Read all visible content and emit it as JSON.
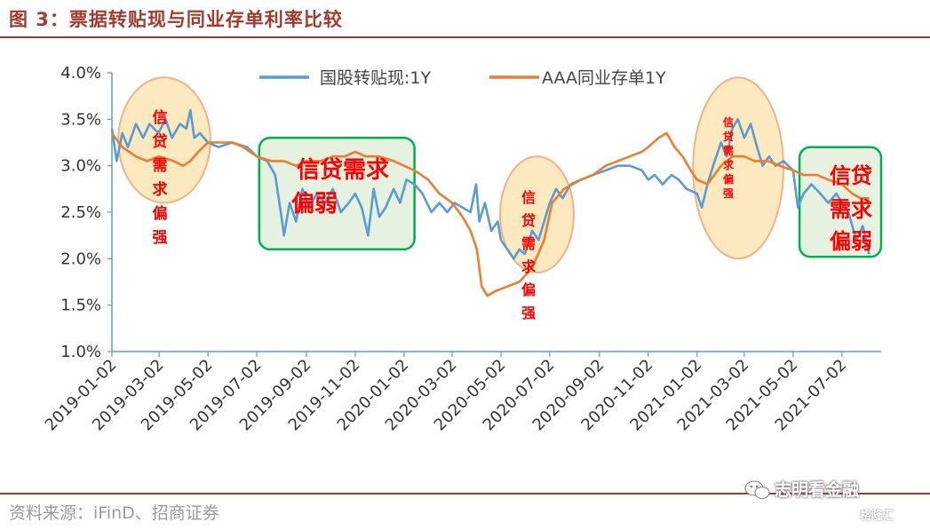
{
  "figure_title": "图 3：票据转贴现与同业存单利率比较",
  "source": "资料来源：iFinD、招商证券",
  "watermark": {
    "name": "志明看金融",
    "site": "格隆汇"
  },
  "colors": {
    "series1": "#5b9bd5",
    "series2": "#ed7d31",
    "accent": "#a23a2e",
    "ellipse_fill": "#fbe5b5",
    "ellipse_stroke": "#f4b183",
    "box_fill": "#e2efda",
    "box_stroke": "#00b050",
    "note_text": "#ff0000"
  },
  "chart_data": {
    "type": "line",
    "title": "",
    "xlabel": "",
    "ylabel": "",
    "ylim": [
      1.0,
      4.0
    ],
    "y_ticks": [
      "1.0%",
      "1.5%",
      "2.0%",
      "2.5%",
      "3.0%",
      "3.5%",
      "4.0%"
    ],
    "x_ticks": [
      "2019-01-02",
      "2019-03-02",
      "2019-05-02",
      "2019-07-02",
      "2019-09-02",
      "2019-11-02",
      "2020-01-02",
      "2020-03-02",
      "2020-05-02",
      "2020-07-02",
      "2020-09-02",
      "2020-11-02",
      "2021-01-02",
      "2021-03-02",
      "2021-05-02",
      "2021-07-02"
    ],
    "legend_position": "top",
    "grid": false,
    "series": [
      {
        "name": "国股转贴现:1Y",
        "points": [
          [
            "2019-01-02",
            3.4
          ],
          [
            "2019-01-08",
            3.05
          ],
          [
            "2019-01-15",
            3.35
          ],
          [
            "2019-01-22",
            3.2
          ],
          [
            "2019-02-01",
            3.45
          ],
          [
            "2019-02-10",
            3.3
          ],
          [
            "2019-02-18",
            3.45
          ],
          [
            "2019-03-01",
            3.35
          ],
          [
            "2019-03-10",
            3.5
          ],
          [
            "2019-03-18",
            3.3
          ],
          [
            "2019-03-28",
            3.45
          ],
          [
            "2019-04-05",
            3.4
          ],
          [
            "2019-04-10",
            3.6
          ],
          [
            "2019-04-15",
            3.3
          ],
          [
            "2019-04-22",
            3.35
          ],
          [
            "2019-05-02",
            3.25
          ],
          [
            "2019-05-15",
            3.2
          ],
          [
            "2019-06-01",
            3.25
          ],
          [
            "2019-06-20",
            3.2
          ],
          [
            "2019-07-02",
            3.1
          ],
          [
            "2019-07-15",
            3.05
          ],
          [
            "2019-07-25",
            2.9
          ],
          [
            "2019-08-01",
            2.5
          ],
          [
            "2019-08-05",
            2.25
          ],
          [
            "2019-08-12",
            2.6
          ],
          [
            "2019-08-20",
            2.4
          ],
          [
            "2019-08-28",
            2.75
          ],
          [
            "2019-09-05",
            2.55
          ],
          [
            "2019-09-15",
            2.7
          ],
          [
            "2019-09-25",
            2.6
          ],
          [
            "2019-10-05",
            2.75
          ],
          [
            "2019-10-15",
            2.5
          ],
          [
            "2019-10-25",
            2.6
          ],
          [
            "2019-11-02",
            2.7
          ],
          [
            "2019-11-10",
            2.55
          ],
          [
            "2019-11-18",
            2.25
          ],
          [
            "2019-11-25",
            2.75
          ],
          [
            "2019-12-02",
            2.45
          ],
          [
            "2019-12-10",
            2.55
          ],
          [
            "2019-12-20",
            2.75
          ],
          [
            "2019-12-28",
            2.6
          ],
          [
            "2020-01-05",
            2.85
          ],
          [
            "2020-01-15",
            2.8
          ],
          [
            "2020-01-25",
            2.7
          ],
          [
            "2020-02-05",
            2.5
          ],
          [
            "2020-02-15",
            2.6
          ],
          [
            "2020-02-25",
            2.5
          ],
          [
            "2020-03-05",
            2.6
          ],
          [
            "2020-03-15",
            2.55
          ],
          [
            "2020-03-25",
            2.5
          ],
          [
            "2020-04-01",
            2.8
          ],
          [
            "2020-04-05",
            2.4
          ],
          [
            "2020-04-12",
            2.6
          ],
          [
            "2020-04-20",
            2.3
          ],
          [
            "2020-04-28",
            2.4
          ],
          [
            "2020-05-02",
            2.2
          ],
          [
            "2020-05-10",
            2.1
          ],
          [
            "2020-05-18",
            2.0
          ],
          [
            "2020-05-25",
            2.1
          ],
          [
            "2020-06-01",
            2.05
          ],
          [
            "2020-06-10",
            2.3
          ],
          [
            "2020-06-18",
            2.2
          ],
          [
            "2020-06-25",
            2.4
          ],
          [
            "2020-07-02",
            2.6
          ],
          [
            "2020-07-10",
            2.75
          ],
          [
            "2020-07-18",
            2.65
          ],
          [
            "2020-07-28",
            2.8
          ],
          [
            "2020-08-10",
            2.85
          ],
          [
            "2020-08-25",
            2.9
          ],
          [
            "2020-09-10",
            2.95
          ],
          [
            "2020-09-25",
            3.0
          ],
          [
            "2020-10-10",
            3.0
          ],
          [
            "2020-10-25",
            2.95
          ],
          [
            "2020-11-02",
            2.85
          ],
          [
            "2020-11-10",
            2.9
          ],
          [
            "2020-11-20",
            2.8
          ],
          [
            "2020-12-01",
            2.9
          ],
          [
            "2020-12-10",
            2.85
          ],
          [
            "2020-12-20",
            2.75
          ],
          [
            "2021-01-02",
            2.7
          ],
          [
            "2021-01-08",
            2.55
          ],
          [
            "2021-01-15",
            2.8
          ],
          [
            "2021-01-22",
            3.0
          ],
          [
            "2021-02-01",
            3.25
          ],
          [
            "2021-02-08",
            3.1
          ],
          [
            "2021-02-15",
            3.4
          ],
          [
            "2021-02-22",
            3.5
          ],
          [
            "2021-03-02",
            3.3
          ],
          [
            "2021-03-10",
            3.45
          ],
          [
            "2021-03-18",
            3.2
          ],
          [
            "2021-03-25",
            3.0
          ],
          [
            "2021-04-02",
            3.1
          ],
          [
            "2021-04-10",
            3.0
          ],
          [
            "2021-04-20",
            3.05
          ],
          [
            "2021-05-02",
            2.95
          ],
          [
            "2021-05-08",
            2.55
          ],
          [
            "2021-05-15",
            2.7
          ],
          [
            "2021-05-25",
            2.8
          ],
          [
            "2021-06-05",
            2.7
          ],
          [
            "2021-06-15",
            2.6
          ],
          [
            "2021-06-25",
            2.7
          ],
          [
            "2021-07-02",
            2.6
          ],
          [
            "2021-07-10",
            2.5
          ],
          [
            "2021-07-20",
            2.2
          ],
          [
            "2021-07-28",
            2.35
          ],
          [
            "2021-08-05",
            2.05
          ]
        ]
      },
      {
        "name": "AAA同业存单1Y",
        "points": [
          [
            "2019-01-02",
            3.35
          ],
          [
            "2019-01-15",
            3.2
          ],
          [
            "2019-02-01",
            3.1
          ],
          [
            "2019-02-15",
            3.05
          ],
          [
            "2019-03-02",
            3.1
          ],
          [
            "2019-03-20",
            3.05
          ],
          [
            "2019-04-01",
            3.0
          ],
          [
            "2019-04-10",
            3.05
          ],
          [
            "2019-04-20",
            3.15
          ],
          [
            "2019-05-02",
            3.25
          ],
          [
            "2019-05-15",
            3.25
          ],
          [
            "2019-06-01",
            3.25
          ],
          [
            "2019-06-15",
            3.2
          ],
          [
            "2019-07-02",
            3.1
          ],
          [
            "2019-07-20",
            3.05
          ],
          [
            "2019-08-05",
            3.05
          ],
          [
            "2019-08-20",
            3.0
          ],
          [
            "2019-09-02",
            3.05
          ],
          [
            "2019-09-20",
            3.05
          ],
          [
            "2019-10-05",
            3.1
          ],
          [
            "2019-10-20",
            3.1
          ],
          [
            "2019-11-02",
            3.15
          ],
          [
            "2019-11-15",
            3.1
          ],
          [
            "2019-12-02",
            3.1
          ],
          [
            "2019-12-20",
            3.05
          ],
          [
            "2020-01-02",
            3.0
          ],
          [
            "2020-01-15",
            2.95
          ],
          [
            "2020-02-01",
            2.85
          ],
          [
            "2020-02-15",
            2.7
          ],
          [
            "2020-03-02",
            2.6
          ],
          [
            "2020-03-15",
            2.45
          ],
          [
            "2020-03-25",
            2.3
          ],
          [
            "2020-04-02",
            2.1
          ],
          [
            "2020-04-08",
            1.7
          ],
          [
            "2020-04-15",
            1.6
          ],
          [
            "2020-04-25",
            1.65
          ],
          [
            "2020-05-10",
            1.7
          ],
          [
            "2020-05-25",
            1.75
          ],
          [
            "2020-06-10",
            1.9
          ],
          [
            "2020-06-25",
            2.2
          ],
          [
            "2020-07-05",
            2.6
          ],
          [
            "2020-07-20",
            2.75
          ],
          [
            "2020-08-10",
            2.85
          ],
          [
            "2020-08-25",
            2.9
          ],
          [
            "2020-09-10",
            3.0
          ],
          [
            "2020-09-25",
            3.05
          ],
          [
            "2020-10-10",
            3.1
          ],
          [
            "2020-10-25",
            3.15
          ],
          [
            "2020-11-02",
            3.2
          ],
          [
            "2020-11-15",
            3.3
          ],
          [
            "2020-11-25",
            3.35
          ],
          [
            "2020-12-05",
            3.2
          ],
          [
            "2020-12-15",
            3.1
          ],
          [
            "2020-12-25",
            2.95
          ],
          [
            "2021-01-02",
            2.85
          ],
          [
            "2021-01-15",
            2.8
          ],
          [
            "2021-02-01",
            3.0
          ],
          [
            "2021-02-15",
            3.1
          ],
          [
            "2021-03-02",
            3.1
          ],
          [
            "2021-03-15",
            3.05
          ],
          [
            "2021-04-01",
            3.05
          ],
          [
            "2021-04-15",
            3.0
          ],
          [
            "2021-05-02",
            2.95
          ],
          [
            "2021-05-15",
            2.9
          ],
          [
            "2021-06-01",
            2.9
          ],
          [
            "2021-06-15",
            2.85
          ],
          [
            "2021-07-02",
            2.8
          ],
          [
            "2021-07-15",
            2.7
          ],
          [
            "2021-07-25",
            2.65
          ],
          [
            "2021-08-05",
            2.65
          ]
        ]
      }
    ],
    "annotations": {
      "ellipses": [
        {
          "text": "信贷需求偏强",
          "x_start": "2019-01-10",
          "x_end": "2019-05-05",
          "y_top": 3.95,
          "y_bottom": 2.6
        },
        {
          "text": "信贷需求偏强",
          "x_start": "2020-05-01",
          "x_end": "2020-08-01",
          "y_top": 3.1,
          "y_bottom": 1.85
        },
        {
          "text": "信贷需求偏强",
          "x_start": "2020-12-28",
          "x_end": "2021-04-20",
          "y_top": 3.95,
          "y_bottom": 2.0
        }
      ],
      "boxes": [
        {
          "text": "信贷需求偏弱",
          "x_start": "2019-07-05",
          "x_end": "2020-01-15",
          "y_top": 3.3,
          "y_bottom": 2.1
        },
        {
          "text": "信贷需求偏弱",
          "x_start": "2021-05-10",
          "x_end": "2021-08-20",
          "y_top": 3.2,
          "y_bottom": 2.02
        }
      ]
    }
  }
}
